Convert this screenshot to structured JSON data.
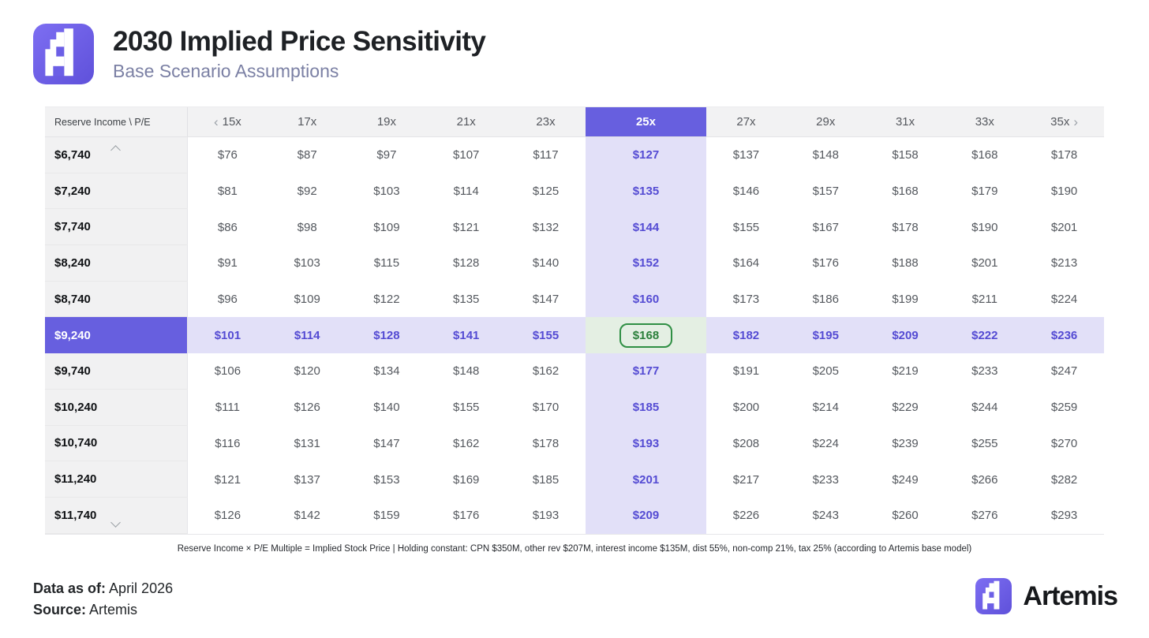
{
  "page": {
    "title": "2030 Implied Price Sensitivity",
    "subtitle": "Base Scenario Assumptions"
  },
  "chart_data": {
    "type": "table",
    "title": "2030 Implied Price Sensitivity",
    "subtitle": "Base Scenario Assumptions",
    "corner_label": "Reserve Income \\ P/E",
    "columns": [
      "15x",
      "17x",
      "19x",
      "21x",
      "23x",
      "25x",
      "27x",
      "29x",
      "31x",
      "33x",
      "35x"
    ],
    "selected_column": "25x",
    "selected_row": "$9,240",
    "highlighted_cell": {
      "row": "$9,240",
      "column": "25x",
      "value": "$168"
    },
    "rows": [
      {
        "label": "$6,740",
        "values": [
          "$76",
          "$87",
          "$97",
          "$107",
          "$117",
          "$127",
          "$137",
          "$148",
          "$158",
          "$168",
          "$178"
        ]
      },
      {
        "label": "$7,240",
        "values": [
          "$81",
          "$92",
          "$103",
          "$114",
          "$125",
          "$135",
          "$146",
          "$157",
          "$168",
          "$179",
          "$190"
        ]
      },
      {
        "label": "$7,740",
        "values": [
          "$86",
          "$98",
          "$109",
          "$121",
          "$132",
          "$144",
          "$155",
          "$167",
          "$178",
          "$190",
          "$201"
        ]
      },
      {
        "label": "$8,240",
        "values": [
          "$91",
          "$103",
          "$115",
          "$128",
          "$140",
          "$152",
          "$164",
          "$176",
          "$188",
          "$201",
          "$213"
        ]
      },
      {
        "label": "$8,740",
        "values": [
          "$96",
          "$109",
          "$122",
          "$135",
          "$147",
          "$160",
          "$173",
          "$186",
          "$199",
          "$211",
          "$224"
        ]
      },
      {
        "label": "$9,240",
        "values": [
          "$101",
          "$114",
          "$128",
          "$141",
          "$155",
          "$168",
          "$182",
          "$195",
          "$209",
          "$222",
          "$236"
        ]
      },
      {
        "label": "$9,740",
        "values": [
          "$106",
          "$120",
          "$134",
          "$148",
          "$162",
          "$177",
          "$191",
          "$205",
          "$219",
          "$233",
          "$247"
        ]
      },
      {
        "label": "$10,240",
        "values": [
          "$111",
          "$126",
          "$140",
          "$155",
          "$170",
          "$185",
          "$200",
          "$214",
          "$229",
          "$244",
          "$259"
        ]
      },
      {
        "label": "$10,740",
        "values": [
          "$116",
          "$131",
          "$147",
          "$162",
          "$178",
          "$193",
          "$208",
          "$224",
          "$239",
          "$255",
          "$270"
        ]
      },
      {
        "label": "$11,240",
        "values": [
          "$121",
          "$137",
          "$153",
          "$169",
          "$185",
          "$201",
          "$217",
          "$233",
          "$249",
          "$266",
          "$282"
        ]
      },
      {
        "label": "$11,740",
        "values": [
          "$126",
          "$142",
          "$159",
          "$176",
          "$193",
          "$209",
          "$226",
          "$243",
          "$260",
          "$276",
          "$293"
        ]
      }
    ]
  },
  "footnote": "Reserve Income × P/E Multiple = Implied Stock Price | Holding constant: CPN $350M, other rev $207M, interest income $135M, dist 55%, non-comp 21%, tax 25% (according to Artemis base model)",
  "footer": {
    "data_as_of_label": "Data as of:",
    "data_as_of_value": "April 2026",
    "source_label": "Source:",
    "source_value": "Artemis",
    "brand_wordmark": "Artemis"
  },
  "colors": {
    "accent": "#675FDF",
    "light_purple": "#E2E0F8",
    "purple_text": "#544BD3",
    "green_text": "#2A7F3A",
    "green_border": "#2F8F44",
    "green_bg": "#E4EFE3",
    "header_bg": "#F2F2F3"
  }
}
